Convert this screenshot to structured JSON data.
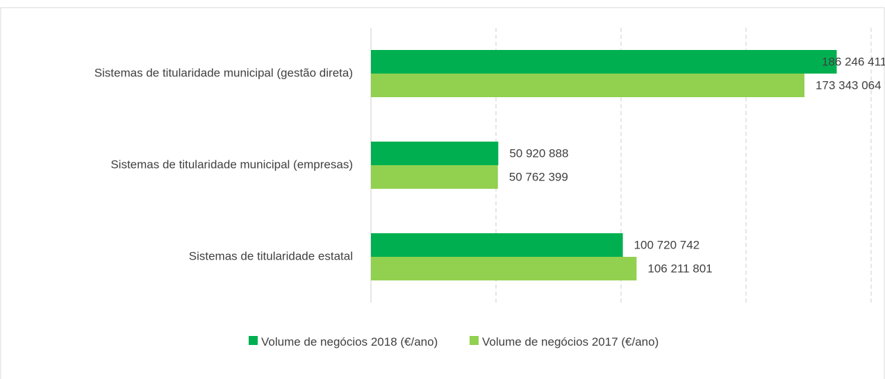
{
  "chart_data": {
    "type": "hbar",
    "categories": [
      "Sistemas de titularidade municipal (gestão direta)",
      "Sistemas de titularidade municipal (empresas)",
      "Sistemas de titularidade estatal"
    ],
    "series": [
      {
        "name": "Volume de negócios 2018 (€/ano)",
        "color": "#00b050",
        "values": [
          186246411,
          50920888,
          100720742
        ],
        "value_labels": [
          "186 246 411",
          "50 920 888",
          "100 720 742"
        ]
      },
      {
        "name": "Volume de negócios 2017 (€/ano)",
        "color": "#92d050",
        "values": [
          173343064,
          50762399,
          106211801
        ],
        "value_labels": [
          "173 343 064",
          "50 762 399",
          "106 211 801"
        ]
      }
    ],
    "xlim": [
      0,
      200000000
    ],
    "xticks": [
      0,
      50000000,
      100000000,
      150000000,
      200000000
    ],
    "grid": true,
    "legend": "bottom"
  }
}
